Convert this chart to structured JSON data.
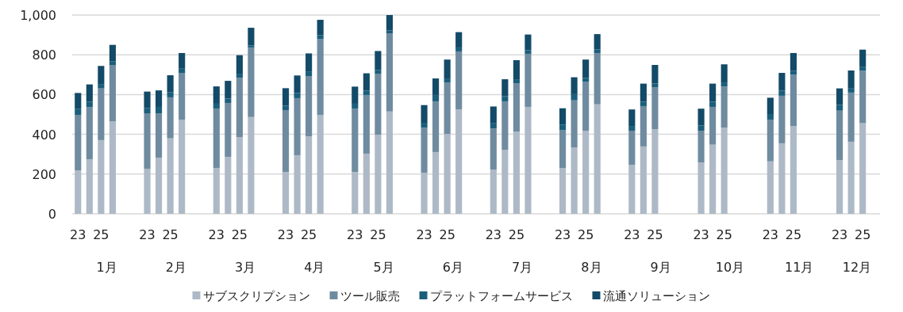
{
  "chart_data": {
    "type": "bar",
    "stacked": true,
    "categories": [
      "23",
      null,
      "25",
      null,
      null,
      null,
      "23",
      null,
      "25",
      null,
      null,
      null,
      "23",
      null,
      "25",
      null,
      null,
      null,
      "23",
      null,
      "25",
      null,
      null,
      null,
      "23",
      null,
      "25",
      null,
      null,
      null,
      "23",
      null,
      "25",
      null,
      null,
      null,
      "23",
      null,
      "25",
      null,
      null,
      null,
      "23",
      null,
      "25",
      null,
      null,
      null,
      "23",
      null,
      "25",
      null,
      null,
      null,
      "23",
      null,
      "25",
      null,
      null,
      null,
      "23",
      null,
      "25",
      null,
      null,
      null,
      "23",
      null,
      "25",
      null
    ],
    "annotations": [
      "1月",
      "2月",
      "3月",
      "4月",
      "5月",
      "6月",
      "7月",
      "8月",
      "9月",
      "10月",
      "11月",
      "12月"
    ],
    "series": [
      {
        "name": "サブスクリプション",
        "color": "#adb9c6",
        "values": [
          219,
          275,
          371,
          466,
          null,
          null,
          226,
          282,
          380,
          474,
          null,
          null,
          230,
          287,
          386,
          487,
          null,
          null,
          211,
          295,
          390,
          498,
          null,
          null,
          211,
          303,
          398,
          515,
          null,
          null,
          206,
          311,
          402,
          526,
          null,
          null,
          223,
          321,
          413,
          538,
          null,
          null,
          230,
          333,
          418,
          551,
          null,
          null,
          247,
          339,
          426,
          null,
          null,
          null,
          259,
          348,
          433,
          null,
          null,
          null,
          264,
          355,
          442,
          null,
          null,
          null,
          271,
          363,
          456,
          null
        ]
      },
      {
        "name": "ツール販売",
        "color": "#6f8ba0",
        "values": [
          279,
          263,
          260,
          283,
          null,
          null,
          280,
          224,
          206,
          235,
          null,
          null,
          300,
          271,
          298,
          350,
          null,
          null,
          311,
          287,
          303,
          382,
          null,
          null,
          319,
          295,
          307,
          393,
          null,
          null,
          227,
          255,
          259,
          291,
          null,
          null,
          206,
          245,
          244,
          267,
          null,
          null,
          192,
          238,
          247,
          258,
          null,
          null,
          171,
          203,
          211,
          null,
          null,
          null,
          159,
          190,
          208,
          null,
          null,
          null,
          210,
          239,
          258,
          null,
          null,
          null,
          248,
          247,
          264,
          null
        ]
      },
      {
        "name": "プラットフォームサービス",
        "color": "#1b5e7b",
        "values": [
          29,
          26,
          22,
          19,
          null,
          null,
          25,
          32,
          25,
          21,
          null,
          null,
          24,
          22,
          21,
          10,
          null,
          null,
          22,
          26,
          21,
          19,
          null,
          null,
          24,
          22,
          19,
          15,
          null,
          null,
          25,
          32,
          20,
          20,
          null,
          null,
          26,
          26,
          20,
          18,
          null,
          null,
          27,
          31,
          19,
          18,
          null,
          null,
          24,
          22,
          19,
          null,
          null,
          null,
          27,
          26,
          20,
          null,
          null,
          null,
          28,
          26,
          20,
          null,
          null,
          null,
          29,
          23,
          18,
          null
        ]
      },
      {
        "name": "流通ソリューション",
        "color": "#134a68",
        "values": [
          81,
          87,
          91,
          82,
          null,
          null,
          84,
          83,
          86,
          79,
          null,
          null,
          87,
          89,
          93,
          89,
          null,
          null,
          88,
          88,
          93,
          77,
          null,
          null,
          86,
          87,
          95,
          77,
          null,
          null,
          89,
          83,
          95,
          77,
          null,
          null,
          85,
          85,
          96,
          79,
          null,
          null,
          82,
          85,
          92,
          77,
          null,
          null,
          83,
          91,
          93,
          null,
          null,
          null,
          84,
          91,
          91,
          null,
          null,
          null,
          82,
          89,
          89,
          null,
          null,
          null,
          83,
          88,
          88,
          null
        ]
      }
    ],
    "ylim": [
      0,
      1000
    ],
    "yticks": [
      0,
      200,
      400,
      600,
      800,
      {
        "value": 1000,
        "label": "1,000"
      }
    ],
    "grid": "y",
    "legend": "bottom"
  }
}
